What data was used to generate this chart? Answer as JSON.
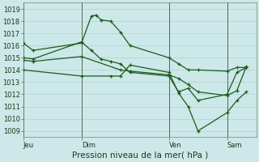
{
  "background_color": "#cce8e8",
  "grid_color": "#b0d0d0",
  "line_color": "#1a5c1a",
  "ylabel": "Pression niveau de la mer( hPa )",
  "ylim": [
    1008.5,
    1019.5
  ],
  "yticks": [
    1009,
    1010,
    1011,
    1012,
    1013,
    1014,
    1015,
    1016,
    1017,
    1018,
    1019
  ],
  "day_labels": [
    "Jeu",
    "Dim",
    "Ven",
    "Sam"
  ],
  "day_positions": [
    0.0,
    0.25,
    0.625,
    0.875
  ],
  "vline_positions": [
    0.0,
    0.25,
    0.625,
    0.875
  ],
  "xlim": [
    0.0,
    1.0
  ],
  "series1_x": [
    0.0,
    0.042,
    0.25,
    0.292,
    0.313,
    0.333,
    0.375,
    0.417,
    0.458,
    0.625,
    0.667,
    0.708,
    0.75,
    0.875,
    0.917,
    0.958
  ],
  "series1_y": [
    1016.2,
    1015.6,
    1016.2,
    1018.4,
    1018.5,
    1018.1,
    1018.0,
    1017.1,
    1016.0,
    1015.0,
    1014.5,
    1014.0,
    1014.0,
    1013.9,
    1014.2,
    1014.2
  ],
  "series2_x": [
    0.0,
    0.042,
    0.25,
    0.292,
    0.333,
    0.375,
    0.417,
    0.458,
    0.625,
    0.667,
    0.708,
    0.75,
    0.875,
    0.917,
    0.958
  ],
  "series2_y": [
    1015.0,
    1014.9,
    1016.3,
    1015.6,
    1014.9,
    1014.7,
    1014.5,
    1013.8,
    1013.5,
    1012.2,
    1012.5,
    1011.5,
    1012.0,
    1013.8,
    1014.2
  ],
  "series3_x": [
    0.0,
    0.042,
    0.25,
    0.417,
    0.458,
    0.625,
    0.667,
    0.708,
    0.75,
    0.875,
    0.917,
    0.958
  ],
  "series3_y": [
    1014.8,
    1014.7,
    1015.1,
    1014.0,
    1013.9,
    1013.6,
    1013.3,
    1012.8,
    1012.2,
    1011.9,
    1012.3,
    1014.3
  ],
  "series4_x": [
    0.0,
    0.25,
    0.375,
    0.417,
    0.458,
    0.625,
    0.667,
    0.708,
    0.75,
    0.875,
    0.917,
    0.958
  ],
  "series4_y": [
    1014.0,
    1013.5,
    1013.5,
    1013.5,
    1014.4,
    1013.8,
    1012.1,
    1011.0,
    1009.0,
    1010.5,
    1011.5,
    1012.2
  ],
  "tick_fontsize": 6.0,
  "label_fontsize": 7.0,
  "xlabel_fontsize": 7.5,
  "line_width": 0.9,
  "marker_size": 3.5
}
